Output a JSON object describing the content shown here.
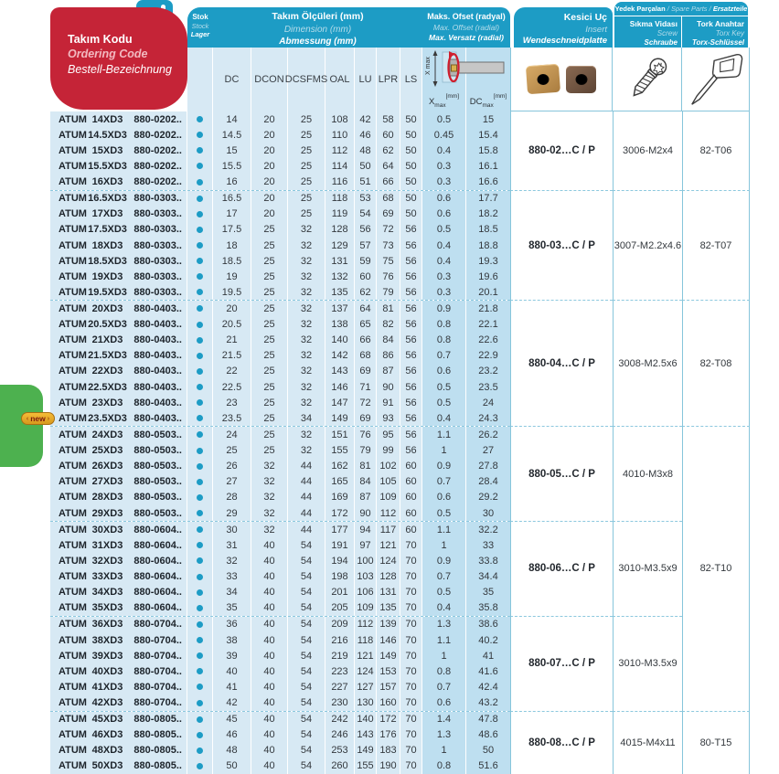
{
  "badge": {
    "label": "new",
    "arrow_left": "‹",
    "arrow_right": "›"
  },
  "colors": {
    "teal": "#1d9cc5",
    "red": "#c52437",
    "light_blue": "#d7e9f4",
    "offset_blue": "#bedff0",
    "green_tab": "#4db14f",
    "gold_badge": "#e8a826"
  },
  "header": {
    "ordering_code": {
      "line1": "Takım Kodu",
      "line2": "Ordering Code",
      "line3": "Bestell-Bezeichnung"
    },
    "stock": {
      "line1": "Stok",
      "line2": "Stock",
      "line3": "Lager"
    },
    "dimensions": {
      "line1": "Takım Ölçüleri (mm)",
      "line2": "Dimension (mm)",
      "line3": "Abmessung (mm)",
      "columns": [
        "DC",
        "DCON",
        "DCSFMS",
        "OAL",
        "LU",
        "LPR",
        "LS"
      ]
    },
    "offset": {
      "line1": "Maks. Ofset (radyal)",
      "line2": "Max. Offset (radial)",
      "line3": "Max. Versatz (radial)",
      "x_label": "X",
      "x_sub": "max",
      "x_unit": "[mm]",
      "dc_label": "DC",
      "dc_sub": "max",
      "dc_unit": "[mm]",
      "diagram_axis_label": "X max"
    },
    "insert": {
      "line1": "Kesici Uç",
      "line2": "Insert",
      "line3": "Wendeschneidplatte"
    },
    "spare_parts": {
      "title_tr": "Yedek Parçalan",
      "sep1": " / ",
      "title_en": "Spare Parts",
      "sep2": " / ",
      "title_de": "Ersatzteile",
      "screw": {
        "line1": "Sıkma Vidası",
        "line2": "Screw",
        "line3": "Schraube"
      },
      "torx": {
        "line1": "Tork Anahtar",
        "line2": "Torx Key",
        "line3": "Torx-Schlüssel"
      }
    }
  },
  "table": {
    "row_format": [
      "brand",
      "size",
      "code",
      "stock",
      "dc",
      "dcon",
      "dcsfms",
      "oal",
      "lu",
      "lpr",
      "ls",
      "xmax",
      "dcmax"
    ],
    "groups": [
      {
        "insert": "880-02…C / P",
        "screw": "3006-M2x4",
        "torx": "82-T06",
        "rows": [
          [
            "ATUM",
            "14XD3",
            "880-0202..",
            true,
            "14",
            "20",
            "25",
            "108",
            "42",
            "58",
            "50",
            "0.5",
            "15"
          ],
          [
            "ATUM",
            "14.5XD3",
            "880-0202..",
            true,
            "14.5",
            "20",
            "25",
            "110",
            "46",
            "60",
            "50",
            "0.45",
            "15.4"
          ],
          [
            "ATUM",
            "15XD3",
            "880-0202..",
            true,
            "15",
            "20",
            "25",
            "112",
            "48",
            "62",
            "50",
            "0.4",
            "15.8"
          ],
          [
            "ATUM",
            "15.5XD3",
            "880-0202..",
            true,
            "15.5",
            "20",
            "25",
            "114",
            "50",
            "64",
            "50",
            "0.3",
            "16.1"
          ],
          [
            "ATUM",
            "16XD3",
            "880-0202..",
            true,
            "16",
            "20",
            "25",
            "116",
            "51",
            "66",
            "50",
            "0.3",
            "16.6"
          ]
        ]
      },
      {
        "insert": "880-03…C / P",
        "screw": "3007-M2.2x4.6",
        "torx": "82-T07",
        "rows": [
          [
            "ATUM",
            "16.5XD3",
            "880-0303..",
            true,
            "16.5",
            "20",
            "25",
            "118",
            "53",
            "68",
            "50",
            "0.6",
            "17.7"
          ],
          [
            "ATUM",
            "17XD3",
            "880-0303..",
            true,
            "17",
            "20",
            "25",
            "119",
            "54",
            "69",
            "50",
            "0.6",
            "18.2"
          ],
          [
            "ATUM",
            "17.5XD3",
            "880-0303..",
            true,
            "17.5",
            "25",
            "32",
            "128",
            "56",
            "72",
            "56",
            "0.5",
            "18.5"
          ],
          [
            "ATUM",
            "18XD3",
            "880-0303..",
            true,
            "18",
            "25",
            "32",
            "129",
            "57",
            "73",
            "56",
            "0.4",
            "18.8"
          ],
          [
            "ATUM",
            "18.5XD3",
            "880-0303..",
            true,
            "18.5",
            "25",
            "32",
            "131",
            "59",
            "75",
            "56",
            "0.4",
            "19.3"
          ],
          [
            "ATUM",
            "19XD3",
            "880-0303..",
            true,
            "19",
            "25",
            "32",
            "132",
            "60",
            "76",
            "56",
            "0.3",
            "19.6"
          ],
          [
            "ATUM",
            "19.5XD3",
            "880-0303..",
            true,
            "19.5",
            "25",
            "32",
            "135",
            "62",
            "79",
            "56",
            "0.3",
            "20.1"
          ]
        ]
      },
      {
        "insert": "880-04…C / P",
        "screw": "3008-M2.5x6",
        "torx": "82-T08",
        "rows": [
          [
            "ATUM",
            "20XD3",
            "880-0403..",
            true,
            "20",
            "25",
            "32",
            "137",
            "64",
            "81",
            "56",
            "0.9",
            "21.8"
          ],
          [
            "ATUM",
            "20.5XD3",
            "880-0403..",
            true,
            "20.5",
            "25",
            "32",
            "138",
            "65",
            "82",
            "56",
            "0.8",
            "22.1"
          ],
          [
            "ATUM",
            "21XD3",
            "880-0403..",
            true,
            "21",
            "25",
            "32",
            "140",
            "66",
            "84",
            "56",
            "0.8",
            "22.6"
          ],
          [
            "ATUM",
            "21.5XD3",
            "880-0403..",
            true,
            "21.5",
            "25",
            "32",
            "142",
            "68",
            "86",
            "56",
            "0.7",
            "22.9"
          ],
          [
            "ATUM",
            "22XD3",
            "880-0403..",
            true,
            "22",
            "25",
            "32",
            "143",
            "69",
            "87",
            "56",
            "0.6",
            "23.2"
          ],
          [
            "ATUM",
            "22.5XD3",
            "880-0403..",
            true,
            "22.5",
            "25",
            "32",
            "146",
            "71",
            "90",
            "56",
            "0.5",
            "23.5"
          ],
          [
            "ATUM",
            "23XD3",
            "880-0403..",
            true,
            "23",
            "25",
            "32",
            "147",
            "72",
            "91",
            "56",
            "0.5",
            "24"
          ],
          [
            "ATUM",
            "23.5XD3",
            "880-0403..",
            true,
            "23.5",
            "25",
            "34",
            "149",
            "69",
            "93",
            "56",
            "0.4",
            "24.3"
          ]
        ]
      },
      {
        "insert": "880-05…C / P",
        "screw": "4010-M3x8",
        "torx": "",
        "rows": [
          [
            "ATUM",
            "24XD3",
            "880-0503..",
            true,
            "24",
            "25",
            "32",
            "151",
            "76",
            "95",
            "56",
            "1.1",
            "26.2"
          ],
          [
            "ATUM",
            "25XD3",
            "880-0503..",
            true,
            "25",
            "25",
            "32",
            "155",
            "79",
            "99",
            "56",
            "1",
            "27"
          ],
          [
            "ATUM",
            "26XD3",
            "880-0503..",
            true,
            "26",
            "32",
            "44",
            "162",
            "81",
            "102",
            "60",
            "0.9",
            "27.8"
          ],
          [
            "ATUM",
            "27XD3",
            "880-0503..",
            true,
            "27",
            "32",
            "44",
            "165",
            "84",
            "105",
            "60",
            "0.7",
            "28.4"
          ],
          [
            "ATUM",
            "28XD3",
            "880-0503..",
            true,
            "28",
            "32",
            "44",
            "169",
            "87",
            "109",
            "60",
            "0.6",
            "29.2"
          ],
          [
            "ATUM",
            "29XD3",
            "880-0503..",
            true,
            "29",
            "32",
            "44",
            "172",
            "90",
            "112",
            "60",
            "0.5",
            "30"
          ]
        ]
      },
      {
        "insert": "880-06…C / P",
        "screw": "3010-M3.5x9",
        "torx": "82-T10",
        "torx_top_open": true,
        "rows": [
          [
            "ATUM",
            "30XD3",
            "880-0604..",
            true,
            "30",
            "32",
            "44",
            "177",
            "94",
            "117",
            "60",
            "1.1",
            "32.2"
          ],
          [
            "ATUM",
            "31XD3",
            "880-0604..",
            true,
            "31",
            "40",
            "54",
            "191",
            "97",
            "121",
            "70",
            "1",
            "33"
          ],
          [
            "ATUM",
            "32XD3",
            "880-0604..",
            true,
            "32",
            "40",
            "54",
            "194",
            "100",
            "124",
            "70",
            "0.9",
            "33.8"
          ],
          [
            "ATUM",
            "33XD3",
            "880-0604..",
            true,
            "33",
            "40",
            "54",
            "198",
            "103",
            "128",
            "70",
            "0.7",
            "34.4"
          ],
          [
            "ATUM",
            "34XD3",
            "880-0604..",
            true,
            "34",
            "40",
            "54",
            "201",
            "106",
            "131",
            "70",
            "0.5",
            "35"
          ],
          [
            "ATUM",
            "35XD3",
            "880-0604..",
            true,
            "35",
            "40",
            "54",
            "205",
            "109",
            "135",
            "70",
            "0.4",
            "35.8"
          ]
        ]
      },
      {
        "insert": "880-07…C / P",
        "screw": "3010-M3.5x9",
        "torx": "",
        "torx_top_open": true,
        "rows": [
          [
            "ATUM",
            "36XD3",
            "880-0704..",
            true,
            "36",
            "40",
            "54",
            "209",
            "112",
            "139",
            "70",
            "1.3",
            "38.6"
          ],
          [
            "ATUM",
            "38XD3",
            "880-0704..",
            true,
            "38",
            "40",
            "54",
            "216",
            "118",
            "146",
            "70",
            "1.1",
            "40.2"
          ],
          [
            "ATUM",
            "39XD3",
            "880-0704..",
            true,
            "39",
            "40",
            "54",
            "219",
            "121",
            "149",
            "70",
            "1",
            "41"
          ],
          [
            "ATUM",
            "40XD3",
            "880-0704..",
            true,
            "40",
            "40",
            "54",
            "223",
            "124",
            "153",
            "70",
            "0.8",
            "41.6"
          ],
          [
            "ATUM",
            "41XD3",
            "880-0704..",
            true,
            "41",
            "40",
            "54",
            "227",
            "127",
            "157",
            "70",
            "0.7",
            "42.4"
          ],
          [
            "ATUM",
            "42XD3",
            "880-0704..",
            true,
            "42",
            "40",
            "54",
            "230",
            "130",
            "160",
            "70",
            "0.6",
            "43.2"
          ]
        ]
      },
      {
        "insert": "880-08…C / P",
        "screw": "4015-M4x11",
        "torx": "80-T15",
        "rows": [
          [
            "ATUM",
            "45XD3",
            "880-0805..",
            true,
            "45",
            "40",
            "54",
            "242",
            "140",
            "172",
            "70",
            "1.4",
            "47.8"
          ],
          [
            "ATUM",
            "46XD3",
            "880-0805..",
            true,
            "46",
            "40",
            "54",
            "246",
            "143",
            "176",
            "70",
            "1.3",
            "48.6"
          ],
          [
            "ATUM",
            "48XD3",
            "880-0805..",
            true,
            "48",
            "40",
            "54",
            "253",
            "149",
            "183",
            "70",
            "1",
            "50"
          ],
          [
            "ATUM",
            "50XD3",
            "880-0805..",
            true,
            "50",
            "40",
            "54",
            "260",
            "155",
            "190",
            "70",
            "0.8",
            "51.6"
          ]
        ]
      }
    ]
  }
}
